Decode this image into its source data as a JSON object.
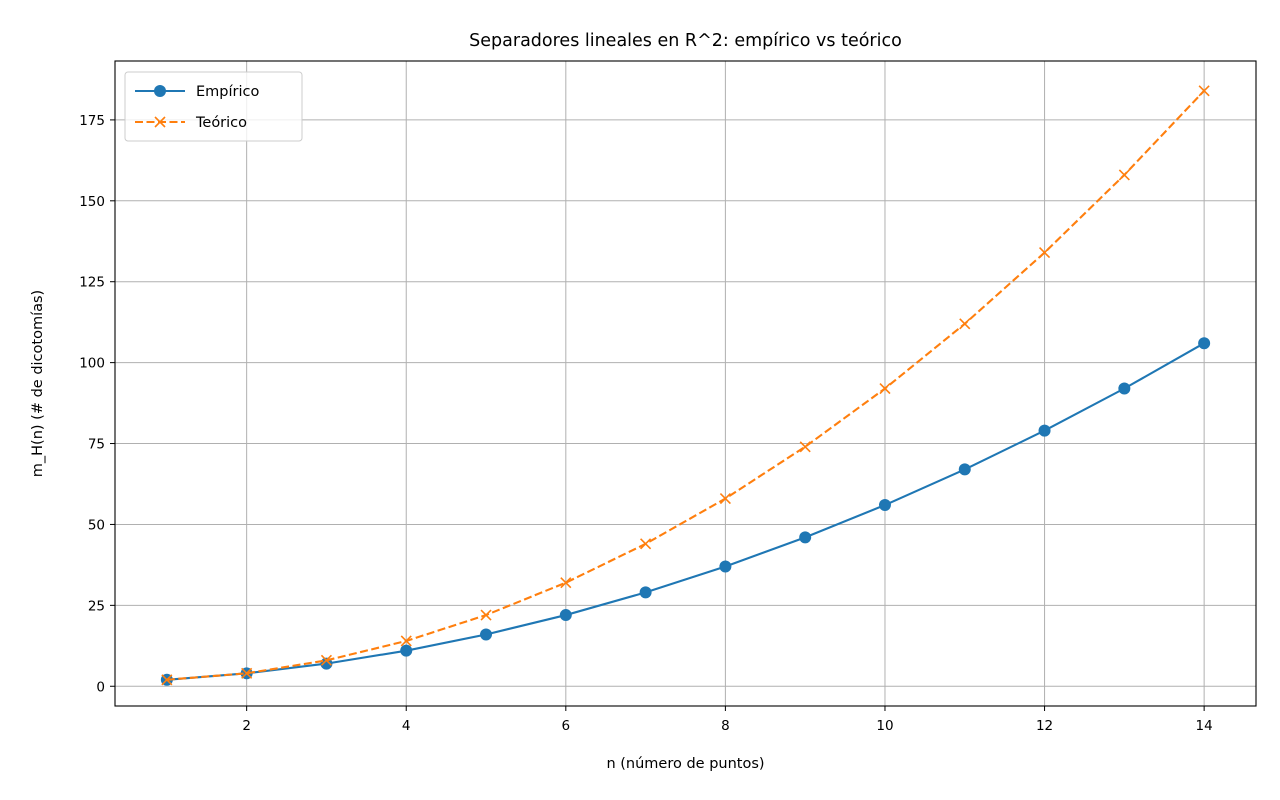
{
  "chart_data": {
    "type": "line",
    "title": "Separadores lineales en R^2: empírico vs teórico",
    "xlabel": "n (número de puntos)",
    "ylabel": "m_H(n) (# de dicotomías)",
    "x": [
      1,
      2,
      3,
      4,
      5,
      6,
      7,
      8,
      9,
      10,
      11,
      12,
      13,
      14
    ],
    "xlim": [
      0.35,
      14.65
    ],
    "ylim": [
      -6.1,
      193.2
    ],
    "xticks": [
      2,
      4,
      6,
      8,
      10,
      12,
      14
    ],
    "yticks": [
      0,
      25,
      50,
      75,
      100,
      125,
      150,
      175
    ],
    "grid": true,
    "legend_position": "top-left",
    "series": [
      {
        "name": "Empírico",
        "values": [
          2,
          4,
          7,
          11,
          16,
          22,
          29,
          37,
          46,
          56,
          67,
          79,
          92,
          106
        ],
        "color": "#1f77b4",
        "line_style": "solid",
        "marker": "circle"
      },
      {
        "name": "Teórico",
        "values": [
          2,
          4,
          8,
          14,
          22,
          32,
          44,
          58,
          74,
          92,
          112,
          134,
          158,
          184
        ],
        "color": "#ff7f0e",
        "line_style": "dashed",
        "marker": "x"
      }
    ]
  }
}
